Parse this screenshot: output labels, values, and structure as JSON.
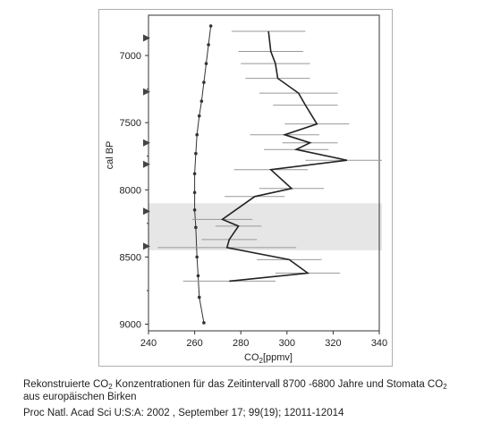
{
  "caption": {
    "line1_a": "Rekonstruierte CO",
    "line1_sub": "2",
    "line1_b": " Konzentrationen für das Zeitintervall 8700 -6800 Jahre und Stomata CO",
    "line1_sub2": "2",
    "line2": "aus europäischen Birken",
    "line3": "Proc Natl. Acad Sci U:S:A: 2002 , September 17; 99(19); 12011-12014"
  },
  "chart_data": {
    "type": "line",
    "xlabel": "CO",
    "xlabel_sub": "2",
    "xlabel_suffix": "[ppmv]",
    "ylabel": "cal BP",
    "xlim": [
      240,
      340
    ],
    "ylim": [
      6700,
      9050
    ],
    "y_inverted": true,
    "x_ticks": [
      240,
      260,
      280,
      300,
      320,
      340
    ],
    "y_ticks": [
      7000,
      7500,
      8000,
      8500,
      9000
    ],
    "y_tick_labels": [
      "7000",
      "7500",
      "8000",
      "8500",
      "9000"
    ],
    "shaded_band": {
      "y_from": 8100,
      "y_to": 8450
    },
    "arrow_markers_y": [
      6870,
      7270,
      7650,
      7810,
      8160,
      8420
    ],
    "series": [
      {
        "style": "line-with-dots",
        "color": "#333333",
        "points": [
          {
            "x": 267,
            "y": 6780
          },
          {
            "x": 266,
            "y": 6920
          },
          {
            "x": 265,
            "y": 7060
          },
          {
            "x": 264,
            "y": 7200
          },
          {
            "x": 263,
            "y": 7340
          },
          {
            "x": 262,
            "y": 7450
          },
          {
            "x": 261,
            "y": 7590
          },
          {
            "x": 260.5,
            "y": 7730
          },
          {
            "x": 260,
            "y": 7880
          },
          {
            "x": 260,
            "y": 8020
          },
          {
            "x": 260,
            "y": 8150
          },
          {
            "x": 260.5,
            "y": 8280
          },
          {
            "x": 261,
            "y": 8500
          },
          {
            "x": 261.5,
            "y": 8640
          },
          {
            "x": 262,
            "y": 8800
          },
          {
            "x": 264,
            "y": 8990
          }
        ]
      },
      {
        "style": "line-with-error-bars",
        "color": "#222222",
        "error_color": "#999999",
        "points": [
          {
            "x": 292,
            "y": 6820,
            "xerr": 16
          },
          {
            "x": 293,
            "y": 6970,
            "xerr": 14
          },
          {
            "x": 295,
            "y": 7060,
            "xerr": 15
          },
          {
            "x": 296,
            "y": 7170,
            "xerr": 14
          },
          {
            "x": 305,
            "y": 7280,
            "xerr": 17
          },
          {
            "x": 308,
            "y": 7370,
            "xerr": 14
          },
          {
            "x": 313,
            "y": 7510,
            "xerr": 14
          },
          {
            "x": 299,
            "y": 7590,
            "xerr": 15
          },
          {
            "x": 310,
            "y": 7650,
            "xerr": 12
          },
          {
            "x": 304,
            "y": 7700,
            "xerr": 14
          },
          {
            "x": 326,
            "y": 7780,
            "xerr": 18
          },
          {
            "x": 293,
            "y": 7850,
            "xerr": 16
          },
          {
            "x": 302,
            "y": 7990,
            "xerr": 14
          },
          {
            "x": 286,
            "y": 8050,
            "xerr": 13
          },
          {
            "x": 272,
            "y": 8220,
            "xerr": 13
          },
          {
            "x": 279,
            "y": 8270,
            "xerr": 10
          },
          {
            "x": 275,
            "y": 8370,
            "xerr": 12
          },
          {
            "x": 274,
            "y": 8430,
            "xerr": 30
          },
          {
            "x": 301,
            "y": 8520,
            "xerr": 14
          },
          {
            "x": 309,
            "y": 8620,
            "xerr": 14
          },
          {
            "x": 275,
            "y": 8680,
            "xerr": 20
          }
        ]
      }
    ]
  }
}
